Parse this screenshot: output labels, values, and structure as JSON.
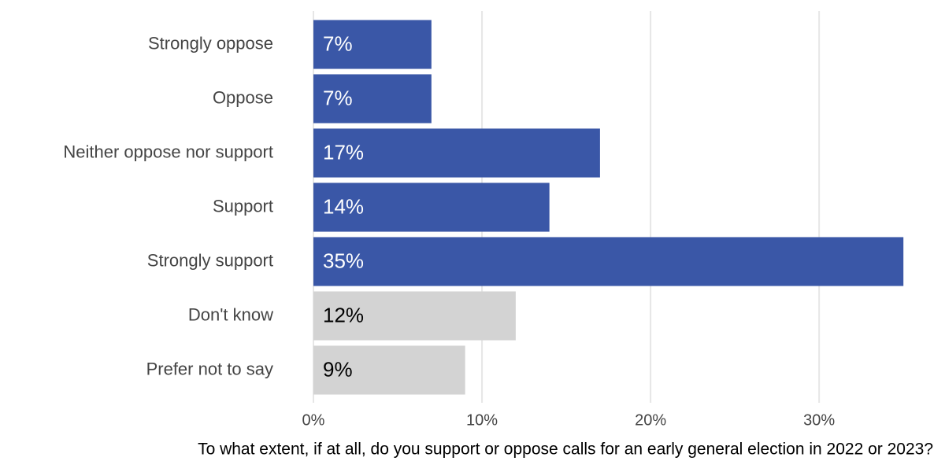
{
  "chart_data": {
    "type": "barh",
    "x_label": "To what extent, if at all, do you support or oppose calls for an early general election in 2022 or 2023?",
    "categories": [
      "Strongly oppose",
      "Oppose",
      "Neither oppose nor support",
      "Support",
      "Strongly support",
      "Don't know",
      "Prefer not to say"
    ],
    "values": [
      7,
      7,
      17,
      14,
      35,
      12,
      9
    ],
    "value_labels": [
      "7%",
      "7%",
      "17%",
      "14%",
      "35%",
      "12%",
      "9%"
    ],
    "colors": [
      "#3a57a7",
      "#3a57a7",
      "#3a57a7",
      "#3a57a7",
      "#3a57a7",
      "#d3d3d3",
      "#d3d3d3"
    ],
    "label_colors": [
      "#ffffff",
      "#ffffff",
      "#ffffff",
      "#ffffff",
      "#ffffff",
      "#000000",
      "#000000"
    ],
    "xlim": [
      0,
      37
    ],
    "xticks": [
      {
        "value": 0,
        "label": "0%"
      },
      {
        "value": 10,
        "label": "10%"
      },
      {
        "value": 20,
        "label": "20%"
      },
      {
        "value": 30,
        "label": "30%"
      }
    ],
    "grid": true
  }
}
